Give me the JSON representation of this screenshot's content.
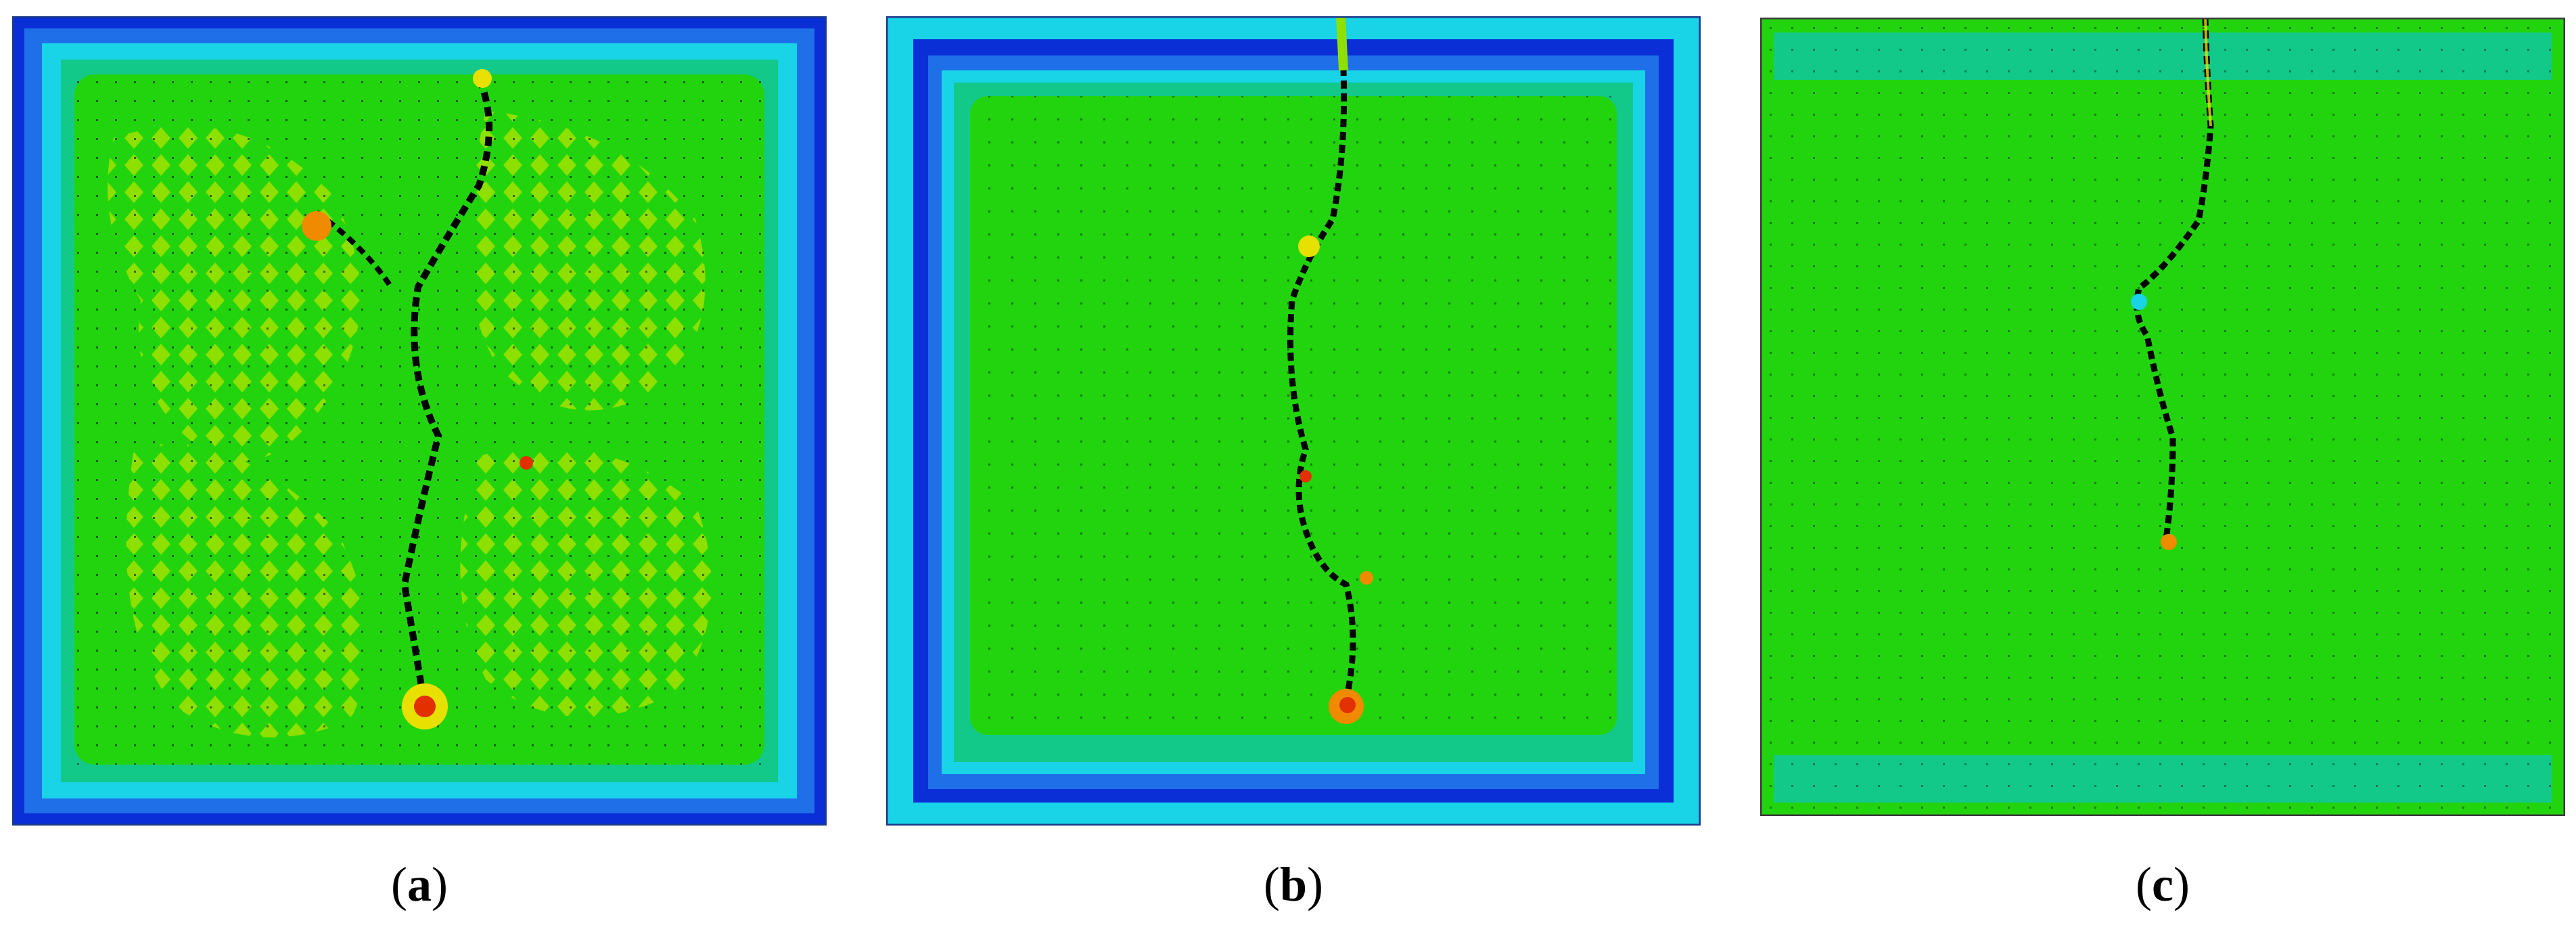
{
  "figure": {
    "panels": [
      {
        "label": "a",
        "description_icon": "stress-contour-field-icon",
        "border_color": "#1a3a8a"
      },
      {
        "label": "b",
        "description_icon": "stress-contour-field-icon",
        "border_color": "#1a3a8a"
      },
      {
        "label": "c",
        "description_icon": "stress-contour-field-icon",
        "border_color": "#3a3a3a"
      }
    ],
    "colors": {
      "deep_blue": "#0a2fd6",
      "blue": "#1f6fe8",
      "cyan": "#19d3e6",
      "teal": "#12c98a",
      "green": "#22d40e",
      "yellow_green": "#8ee000",
      "yellow": "#e8e000",
      "orange": "#f08a00",
      "red": "#e23000",
      "crack": "#000000"
    }
  }
}
